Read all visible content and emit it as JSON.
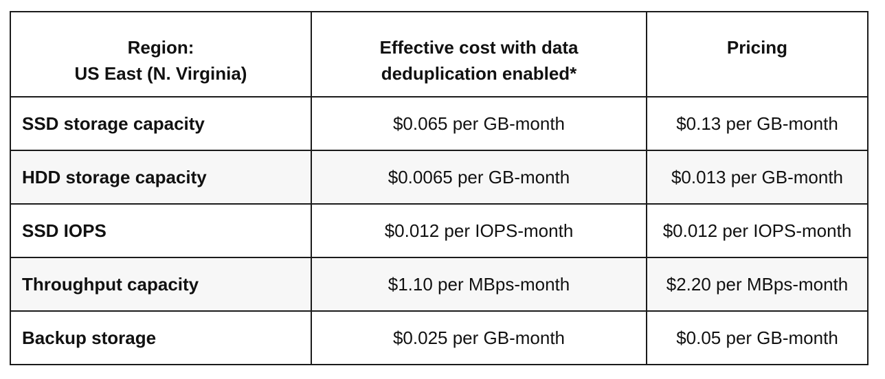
{
  "table": {
    "headers": [
      {
        "lines": [
          "Region:",
          "US East (N. Virginia)"
        ]
      },
      {
        "lines": [
          "Effective cost with data",
          "deduplication enabled*"
        ]
      },
      {
        "lines": [
          "Pricing"
        ]
      }
    ],
    "rows": [
      {
        "label": "SSD storage capacity",
        "effective": "$0.065 per GB-month",
        "pricing": "$0.13 per GB-month"
      },
      {
        "label": "HDD storage capacity",
        "effective": "$0.0065 per GB-month",
        "pricing": "$0.013 per GB-month"
      },
      {
        "label": "SSD IOPS",
        "effective": "$0.012 per IOPS-month",
        "pricing": "$0.012 per IOPS-month"
      },
      {
        "label": "Throughput capacity",
        "effective": "$1.10 per MBps-month",
        "pricing": "$2.20 per MBps-month"
      },
      {
        "label": "Backup storage",
        "effective": "$0.025 per GB-month",
        "pricing": "$0.05 per GB-month"
      }
    ]
  }
}
